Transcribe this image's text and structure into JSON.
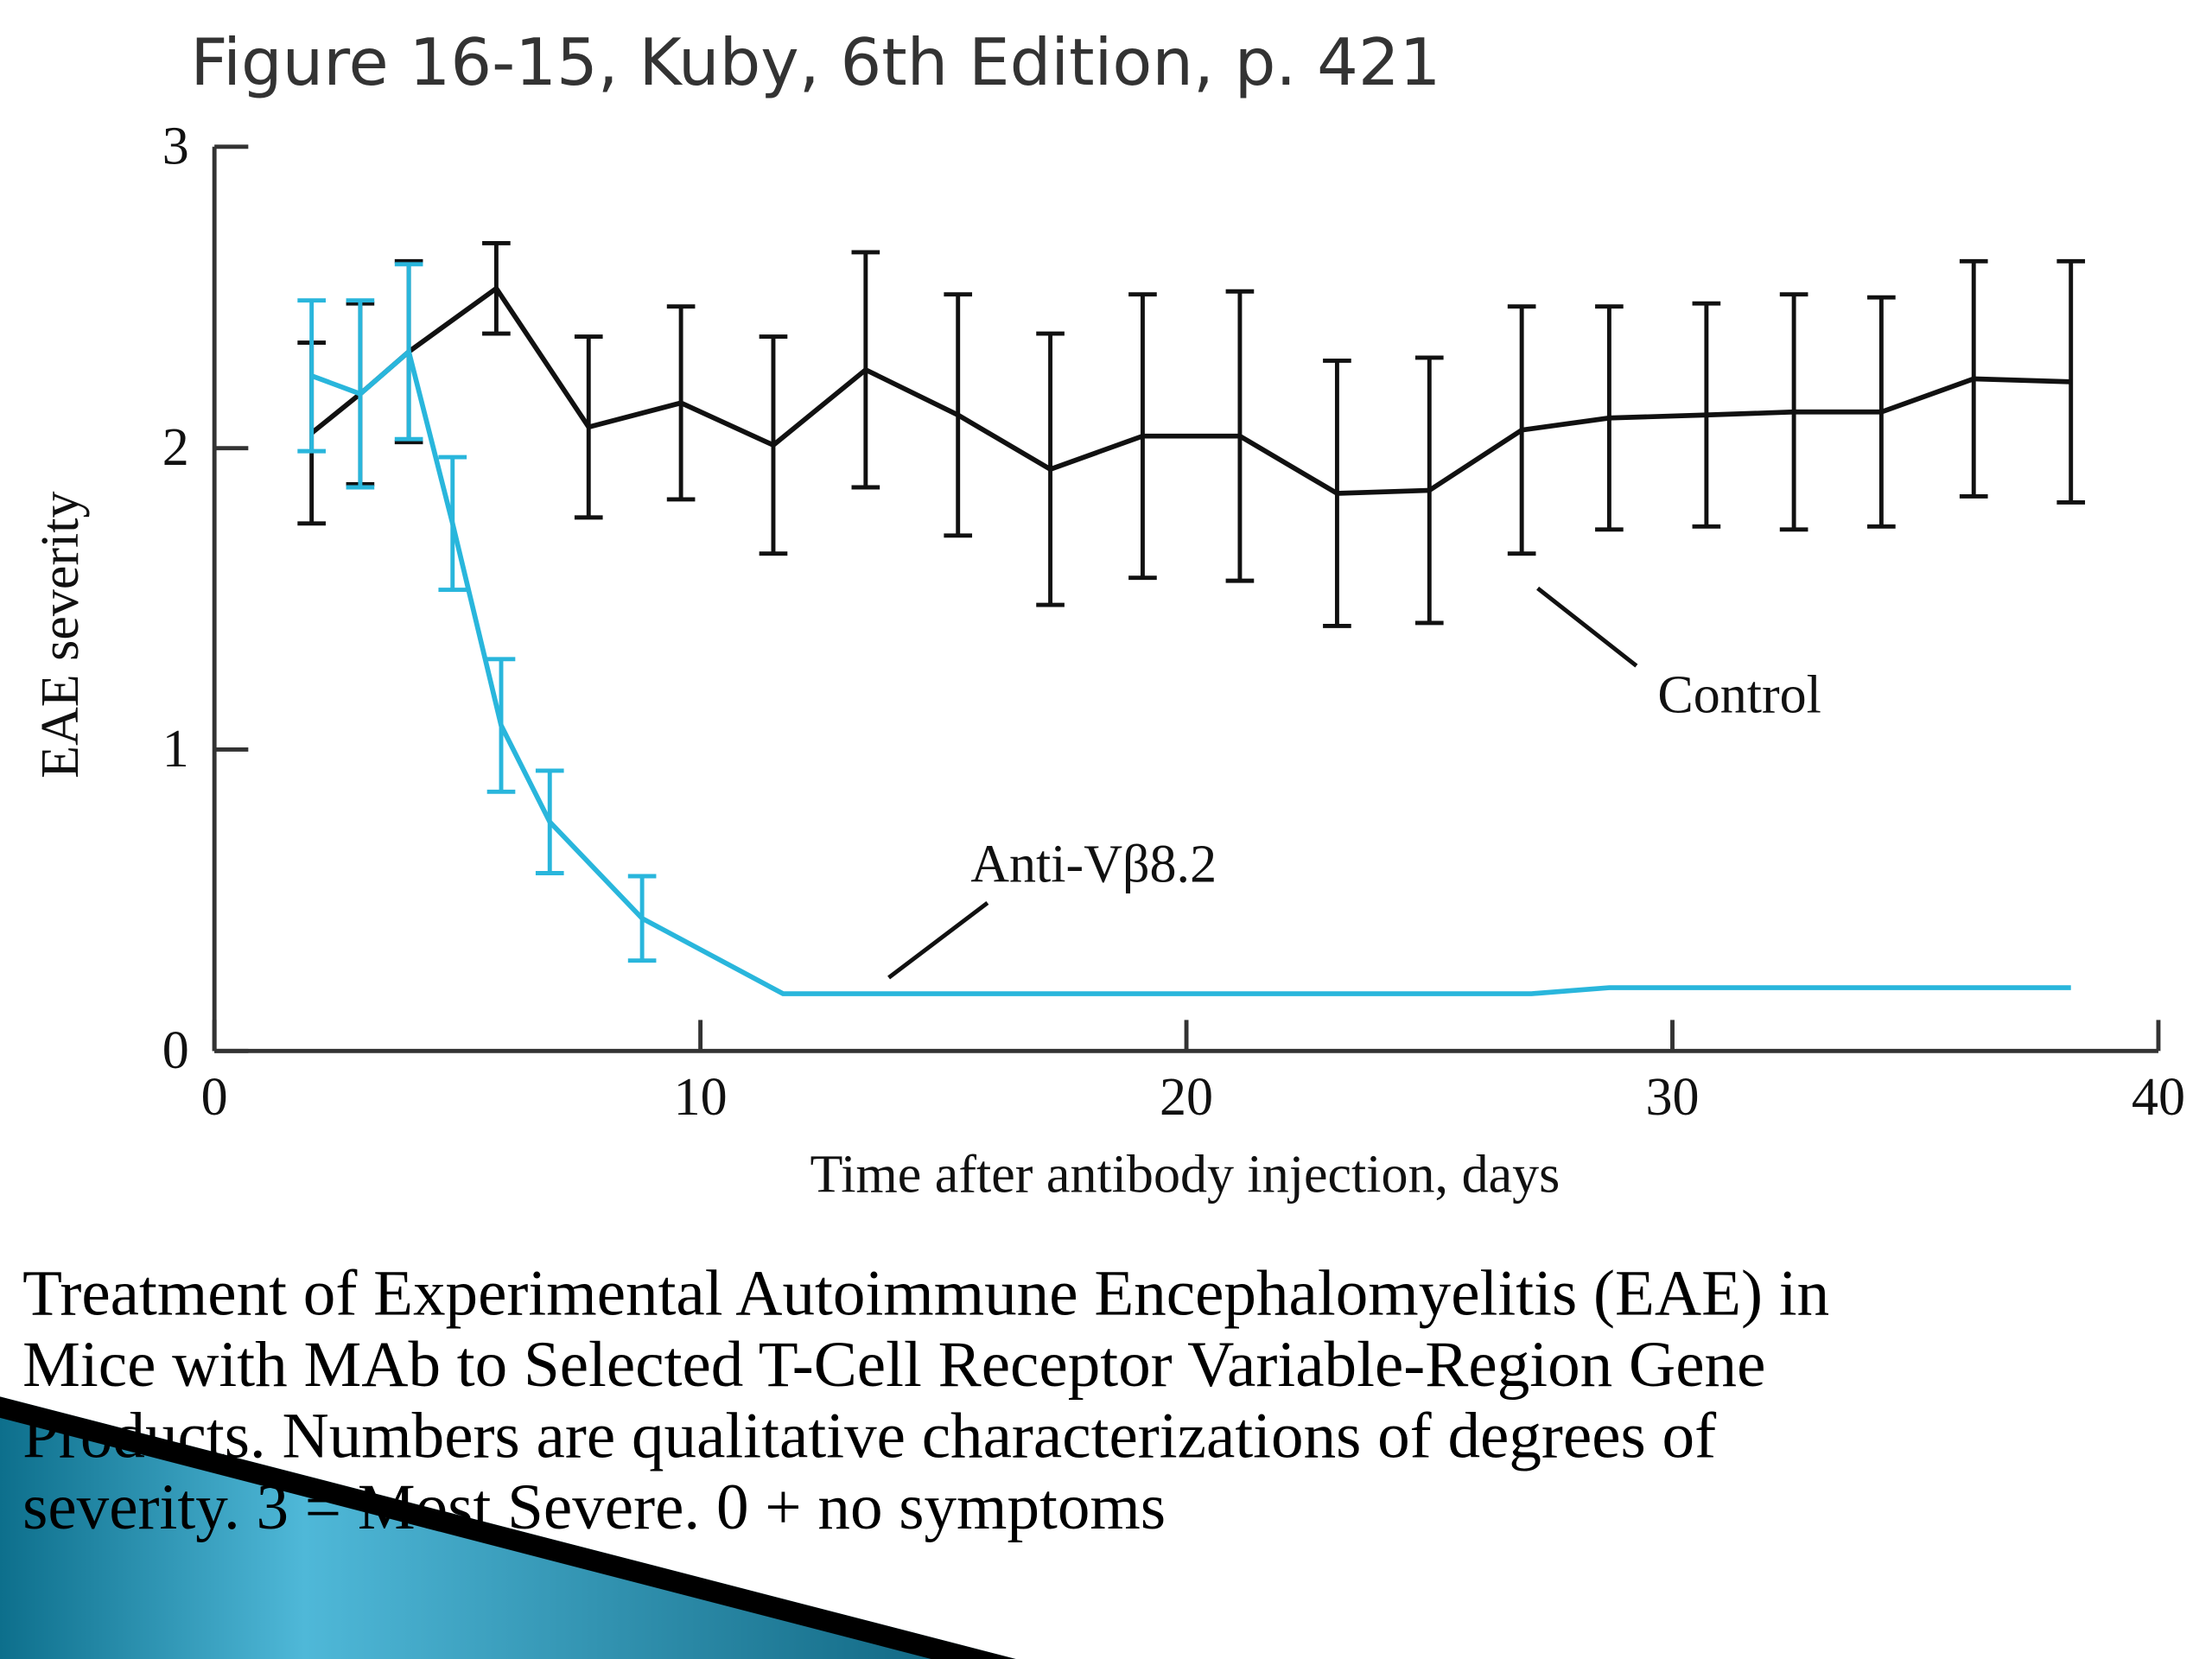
{
  "chart_data": {
    "type": "line",
    "title": "Figure 16-15, Kuby, 6th Edition, p. 421",
    "x_label": "Time after antibody injection, days",
    "y_label": "EAE severity",
    "xlim": [
      0,
      40
    ],
    "xticks": [
      0,
      10,
      20,
      30,
      40
    ],
    "ylim": [
      0,
      3
    ],
    "yticks": [
      0,
      1,
      2,
      3
    ],
    "series": [
      {
        "name": "Control",
        "color": "#111111",
        "x": [
          2.0,
          3.0,
          4.0,
          5.8,
          7.7,
          9.6,
          11.5,
          13.4,
          15.3,
          17.2,
          19.1,
          21.1,
          23.1,
          25.0,
          26.9,
          28.7,
          30.7,
          32.5,
          34.3,
          36.2,
          38.2
        ],
        "values": [
          2.05,
          2.18,
          2.32,
          2.53,
          2.07,
          2.15,
          2.01,
          2.26,
          2.11,
          1.93,
          2.04,
          2.04,
          1.85,
          1.86,
          2.06,
          2.1,
          2.11,
          2.12,
          2.12,
          2.23,
          2.22
        ],
        "errors": [
          0.3,
          0.3,
          0.3,
          0.15,
          0.3,
          0.32,
          0.36,
          0.39,
          0.4,
          0.45,
          0.47,
          0.48,
          0.44,
          0.44,
          0.41,
          0.37,
          0.37,
          0.39,
          0.38,
          0.39,
          0.4
        ]
      },
      {
        "name": "Anti-Vβ8.2",
        "color": "#29b6dc",
        "x": [
          2.0,
          3.0,
          4.0,
          4.9,
          5.9,
          6.9,
          8.8,
          11.7,
          27.1,
          28.7,
          38.2
        ],
        "values": [
          2.24,
          2.18,
          2.32,
          1.75,
          1.08,
          0.76,
          0.44,
          0.19,
          0.19,
          0.21,
          0.21
        ],
        "errors": [
          0.25,
          0.31,
          0.29,
          0.22,
          0.22,
          0.17,
          0.14,
          null,
          null,
          null,
          null
        ]
      }
    ],
    "caption": [
      "Treatment of Experimental Autoimmune Encephalomyelitis (EAE) in",
      "Mice with MAb to Selected T-Cell Receptor Variable-Region Gene",
      "Products. Numbers are qualitative characterizations of degrees of",
      "severity. 3 = Most Severe. 0 + no symptoms"
    ]
  }
}
